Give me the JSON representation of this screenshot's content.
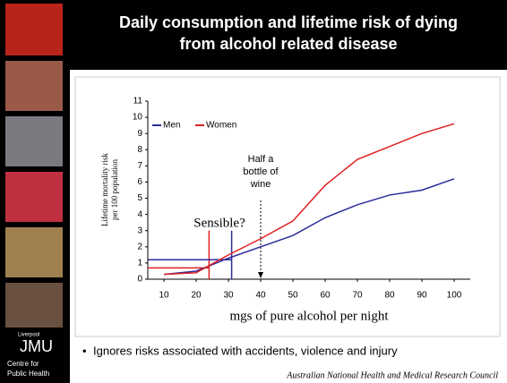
{
  "chart_data": {
    "type": "line",
    "title": "Daily consumption and lifetime risk of dying from alcohol related disease",
    "xlabel": "mgs of pure alcohol per night",
    "ylabel": [
      "Lifetime mortality risk",
      "per 100 population"
    ],
    "x": [
      10,
      20,
      30,
      40,
      50,
      60,
      70,
      80,
      90,
      100
    ],
    "series": [
      {
        "name": "Men",
        "color": "#2b2b9a",
        "values": [
          0.3,
          0.5,
          1.3,
          2.0,
          2.7,
          3.8,
          4.6,
          5.2,
          5.5,
          6.2
        ]
      },
      {
        "name": "Women",
        "color": "#e02020",
        "values": [
          0.3,
          0.4,
          1.5,
          2.5,
          3.6,
          5.8,
          7.4,
          8.2,
          9.0,
          9.6
        ]
      }
    ],
    "xlim": [
      5,
      105
    ],
    "xticks": [
      10,
      20,
      30,
      40,
      50,
      60,
      70,
      80,
      90,
      100
    ],
    "ylim": [
      0,
      11
    ],
    "yticks": [
      0,
      1,
      2,
      3,
      4,
      5,
      6,
      7,
      8,
      9,
      10,
      11
    ],
    "reference_lines": [
      {
        "color": "#e02020",
        "x": 24,
        "y": 0.7,
        "top": 3.0
      },
      {
        "color": "#2b2b9a",
        "x": 31,
        "y": 1.2,
        "top": 3.0
      }
    ],
    "reference_label": "Sensible?",
    "annotation": {
      "text": [
        "Half a",
        "bottle of",
        "wine"
      ],
      "x": 40
    }
  },
  "slide": {
    "bullet": "Ignores risks associated with accidents, violence and injury",
    "source": "Australian National Health and Medical Research Council",
    "logo_small": "Liverpool",
    "logo": "JMU",
    "logo_sub": [
      "Centre for",
      "Public Health"
    ]
  }
}
